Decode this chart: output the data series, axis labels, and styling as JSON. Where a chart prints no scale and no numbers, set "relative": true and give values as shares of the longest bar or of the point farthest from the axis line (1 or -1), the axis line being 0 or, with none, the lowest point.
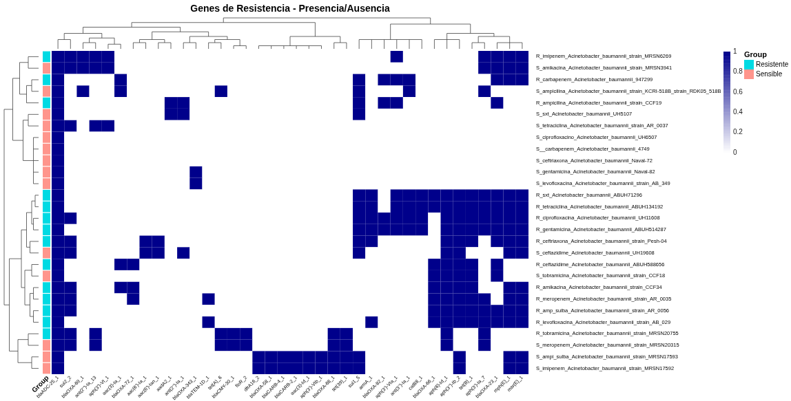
{
  "chart_data": [
    {
      "type": "bar",
      "orientation": "horizontal",
      "stacked": true,
      "relative": true,
      "xlabel": "Group",
      "legend_title": "Group",
      "legend": "right",
      "categories": [
        null,
        null,
        null,
        null,
        null,
        null,
        null,
        null,
        null,
        null,
        null,
        null,
        null,
        null,
        null,
        null,
        null,
        null,
        null,
        null,
        null,
        null,
        null,
        null,
        null,
        null,
        null,
        null
      ],
      "series": [
        {
          "name": "Resistente",
          "color": "#00dae3",
          "values": [
            1,
            null,
            1,
            null,
            1,
            null,
            null,
            null,
            null,
            null,
            null,
            null,
            1,
            1,
            1,
            1,
            1,
            null,
            1,
            null,
            1,
            1,
            1,
            1,
            1,
            null,
            null,
            null
          ]
        },
        {
          "name": "Sensible",
          "color": "#ff958c",
          "values": [
            null,
            1,
            null,
            1,
            null,
            1,
            1,
            1,
            1,
            1,
            1,
            1,
            null,
            null,
            null,
            null,
            null,
            1,
            null,
            1,
            null,
            null,
            null,
            null,
            null,
            1,
            1,
            1
          ]
        }
      ]
    },
    {
      "type": "heatmap",
      "title": "Genes de Resistencia - Presencia/Ausencia",
      "categories": [
        "blaADC-25_1",
        "sul2_2",
        "blaOXA-69_1",
        "ant(2'')-Ia_13",
        "aph(3')-VI_1",
        "aac(3)-Ia_1",
        "blaOXA-72_1",
        "aac(6')-Ia_1",
        "aac(6')-Ian_1",
        "aadA2_1",
        "ant(2'')-Ia_1",
        "blaOXA-343_1",
        "blaTEM-1D_1",
        "tet(A)_6",
        "blaCMY-30_1",
        "floR_2",
        "dfrA16_2",
        "blaOXA-58_1",
        "blaCARB-4_1",
        "blaCARB-2_1",
        "aac(3)-Id_1",
        "aph(3')-VIb_1",
        "blaOXA-68_1",
        "tet(39)_1",
        "sul1_5",
        "armA_1",
        "blaOXA-82_1",
        "aph(3')-VIa_1",
        "ant(3'')-Ia_1",
        "catB8_1",
        "blaOXA-66_1",
        "aph(6)-Id_1",
        "aph(3'')-Ib_2",
        "tet(B)_1",
        "aph(3')-Ia_7",
        "blaOXA-23_1",
        "mph(E)_1",
        "msr(E)_1"
      ],
      "y_categories": [
        "R_imipenem_Acinetobacter_baumannii_strain_MRSN6269",
        "S_amikacina_Acinetobacter_baumannii_strain_MRSN3941",
        "R_carbapenem_Acinetobacter_baumannii_947299",
        "S_ampicilina_Acinetobacter_baumannii_strain_KCRI-518B_strain_RDK05_518B",
        "R_ampicilina_Acinetobacter_baumannii_strain_CCF19",
        "S_sxt_Acinetobacter_baumannii_UH5107",
        "S_tetraciclina_Acinetobacter_baumannii_strain_AR_0037",
        "S_ciprofloxacino_Acinetobacter_baumannii_UH6507",
        "S__carbapenem_Acinetobacter_baumannii_4749",
        "S_ceftriaxona_Acinetobacter_baumannii_Naval-72",
        "S_gentamicina_Acinetobacter_baumannii_Naval-82",
        "S_levofloxacina_Acinetobacter_baumannii_strain_AB_349",
        "R_sxt_Acinetobacter_baumannii_ABUH71296",
        "R_tetraciclina_Acinetobacter_baumannii_ABUH134192",
        "R_ciprofloxacina_Acinetobacter_baumannii_UH11608",
        "R_gentamicina_Acinetobacter_baumannii_ABUH514287",
        "R_ceftriaxona_Acinetobacter_baumannii_strain_Pesh-04",
        "S_ceftazidime_Acinetobacter_baumannii_UH19608",
        "R_ceftazidime_Acinetobacter_baumannii_ABUH588656",
        "S_tobramicina_Acinetobacter_baumannii_strain_CCF18",
        "R_amikacina_Acinetobacter_baumannii_strain_CCF34",
        "R_meropenem_Acinetobacter_baumannii_strain_AR_0035",
        "R_amp_sulba_Acinetobacter_baumannii_strain_AR_0056",
        "R_levofloxacina_Acinetobacter_baumannii_strain_AB_029",
        "R_tobramicina_Acinetobacter_baumannii_strain_MRSN20755",
        "S_meropenem_Acinetobacter_baumannii_strain_MRSN20315",
        "S_ampi_sulba_Acinetobacter_baumannii_strain_MRSN17593",
        "S_imipenem_Acinetobacter_baumannii_strain_MRSN17592"
      ],
      "colors": [
        "#ffffff",
        "#00008b"
      ],
      "clim": [
        0,
        1
      ],
      "cticks": [
        0,
        0.2,
        0.4,
        0.6,
        0.8,
        1
      ],
      "cells": [
        [
          1,
          1,
          1,
          1,
          1,
          0,
          0,
          0,
          0,
          0,
          0,
          0,
          0,
          0,
          0,
          0,
          0,
          0,
          0,
          0,
          0,
          0,
          0,
          0,
          0,
          0,
          0,
          1,
          0,
          0,
          0,
          0,
          0,
          0,
          1,
          1,
          1,
          1
        ],
        [
          1,
          1,
          1,
          1,
          1,
          0,
          0,
          0,
          0,
          0,
          0,
          0,
          0,
          0,
          0,
          0,
          0,
          0,
          0,
          0,
          0,
          0,
          0,
          0,
          0,
          0,
          0,
          0,
          0,
          0,
          0,
          0,
          0,
          0,
          1,
          1,
          1,
          1
        ],
        [
          1,
          0,
          0,
          0,
          0,
          1,
          0,
          0,
          0,
          0,
          0,
          0,
          0,
          0,
          0,
          0,
          0,
          0,
          0,
          0,
          0,
          0,
          0,
          0,
          1,
          0,
          1,
          1,
          1,
          0,
          0,
          0,
          0,
          0,
          0,
          1,
          1,
          1
        ],
        [
          1,
          0,
          1,
          0,
          0,
          1,
          0,
          0,
          0,
          0,
          0,
          0,
          0,
          1,
          0,
          0,
          0,
          0,
          0,
          0,
          0,
          0,
          0,
          0,
          1,
          0,
          0,
          0,
          1,
          0,
          0,
          0,
          0,
          0,
          1,
          0,
          0,
          0
        ],
        [
          1,
          0,
          0,
          0,
          0,
          0,
          0,
          0,
          0,
          1,
          1,
          0,
          0,
          0,
          0,
          0,
          0,
          0,
          0,
          0,
          0,
          0,
          0,
          0,
          1,
          0,
          1,
          1,
          0,
          0,
          0,
          0,
          0,
          0,
          0,
          1,
          0,
          0
        ],
        [
          1,
          0,
          0,
          0,
          0,
          0,
          0,
          0,
          0,
          1,
          1,
          0,
          0,
          0,
          0,
          0,
          0,
          0,
          0,
          0,
          0,
          0,
          0,
          0,
          1,
          0,
          0,
          0,
          0,
          0,
          0,
          0,
          0,
          0,
          0,
          0,
          0,
          0
        ],
        [
          1,
          1,
          0,
          1,
          1,
          0,
          0,
          0,
          0,
          0,
          0,
          0,
          0,
          0,
          0,
          0,
          0,
          0,
          0,
          0,
          0,
          0,
          0,
          0,
          0,
          0,
          0,
          0,
          0,
          0,
          0,
          0,
          0,
          0,
          0,
          0,
          0,
          0
        ],
        [
          1,
          0,
          0,
          0,
          0,
          0,
          0,
          0,
          0,
          0,
          0,
          0,
          0,
          0,
          0,
          0,
          0,
          0,
          0,
          0,
          0,
          0,
          0,
          0,
          0,
          0,
          0,
          0,
          0,
          0,
          0,
          0,
          0,
          0,
          0,
          0,
          0,
          0
        ],
        [
          1,
          0,
          0,
          0,
          0,
          0,
          0,
          0,
          0,
          0,
          0,
          0,
          0,
          0,
          0,
          0,
          0,
          0,
          0,
          0,
          0,
          0,
          0,
          0,
          0,
          0,
          0,
          0,
          0,
          0,
          0,
          0,
          0,
          0,
          0,
          0,
          0,
          0
        ],
        [
          1,
          0,
          0,
          0,
          0,
          0,
          0,
          0,
          0,
          0,
          0,
          0,
          0,
          0,
          0,
          0,
          0,
          0,
          0,
          0,
          0,
          0,
          0,
          0,
          0,
          0,
          0,
          0,
          0,
          0,
          0,
          0,
          0,
          0,
          0,
          0,
          0,
          0
        ],
        [
          1,
          0,
          0,
          0,
          0,
          0,
          0,
          0,
          0,
          0,
          0,
          1,
          0,
          0,
          0,
          0,
          0,
          0,
          0,
          0,
          0,
          0,
          0,
          0,
          0,
          0,
          0,
          0,
          0,
          0,
          0,
          0,
          0,
          0,
          0,
          0,
          0,
          0
        ],
        [
          1,
          0,
          0,
          0,
          0,
          0,
          0,
          0,
          0,
          0,
          0,
          1,
          0,
          0,
          0,
          0,
          0,
          0,
          0,
          0,
          0,
          0,
          0,
          0,
          0,
          0,
          0,
          0,
          0,
          0,
          0,
          0,
          0,
          0,
          0,
          0,
          0,
          0
        ],
        [
          1,
          0,
          0,
          0,
          0,
          0,
          0,
          0,
          0,
          0,
          0,
          0,
          0,
          0,
          0,
          0,
          0,
          0,
          0,
          0,
          0,
          0,
          0,
          0,
          1,
          1,
          0,
          1,
          1,
          1,
          1,
          1,
          1,
          1,
          1,
          1,
          1,
          1
        ],
        [
          1,
          0,
          0,
          0,
          0,
          0,
          0,
          0,
          0,
          0,
          0,
          0,
          0,
          0,
          0,
          0,
          0,
          0,
          0,
          0,
          0,
          0,
          0,
          0,
          1,
          1,
          0,
          1,
          1,
          1,
          1,
          1,
          1,
          1,
          1,
          1,
          1,
          1
        ],
        [
          1,
          1,
          0,
          0,
          0,
          0,
          0,
          0,
          0,
          0,
          0,
          0,
          0,
          0,
          0,
          0,
          0,
          0,
          0,
          0,
          0,
          0,
          0,
          0,
          1,
          1,
          1,
          1,
          1,
          1,
          0,
          1,
          1,
          1,
          1,
          1,
          1,
          1
        ],
        [
          1,
          0,
          0,
          0,
          0,
          0,
          0,
          0,
          0,
          0,
          0,
          0,
          0,
          0,
          0,
          0,
          0,
          0,
          0,
          0,
          0,
          0,
          0,
          0,
          1,
          1,
          1,
          1,
          1,
          1,
          0,
          1,
          1,
          1,
          1,
          1,
          1,
          1
        ],
        [
          1,
          1,
          0,
          0,
          0,
          0,
          0,
          1,
          1,
          0,
          0,
          0,
          0,
          0,
          0,
          0,
          0,
          0,
          0,
          0,
          0,
          0,
          0,
          0,
          1,
          1,
          0,
          0,
          0,
          0,
          0,
          1,
          1,
          1,
          0,
          1,
          1,
          1
        ],
        [
          1,
          1,
          0,
          0,
          0,
          0,
          0,
          1,
          1,
          0,
          1,
          0,
          0,
          0,
          0,
          0,
          0,
          0,
          0,
          0,
          0,
          0,
          0,
          0,
          1,
          0,
          0,
          0,
          0,
          0,
          0,
          1,
          1,
          0,
          0,
          0,
          1,
          1
        ],
        [
          1,
          0,
          0,
          0,
          0,
          1,
          1,
          0,
          0,
          0,
          0,
          0,
          0,
          0,
          0,
          0,
          0,
          0,
          0,
          0,
          0,
          0,
          0,
          0,
          0,
          0,
          0,
          0,
          0,
          0,
          1,
          1,
          1,
          1,
          0,
          1,
          0,
          0
        ],
        [
          1,
          0,
          0,
          0,
          0,
          0,
          0,
          0,
          0,
          0,
          0,
          0,
          0,
          0,
          0,
          0,
          0,
          0,
          0,
          0,
          0,
          0,
          0,
          0,
          0,
          0,
          0,
          0,
          0,
          0,
          1,
          1,
          1,
          1,
          0,
          1,
          0,
          0
        ],
        [
          1,
          1,
          0,
          0,
          0,
          1,
          1,
          0,
          0,
          0,
          0,
          0,
          0,
          0,
          0,
          0,
          0,
          0,
          0,
          0,
          0,
          0,
          0,
          0,
          0,
          0,
          0,
          0,
          0,
          0,
          1,
          1,
          1,
          1,
          0,
          0,
          1,
          1
        ],
        [
          1,
          1,
          0,
          0,
          0,
          0,
          1,
          0,
          0,
          0,
          0,
          0,
          1,
          0,
          0,
          0,
          0,
          0,
          0,
          0,
          0,
          0,
          0,
          0,
          0,
          0,
          0,
          0,
          0,
          0,
          1,
          1,
          1,
          1,
          1,
          0,
          1,
          1
        ],
        [
          1,
          1,
          0,
          0,
          0,
          0,
          0,
          0,
          0,
          0,
          0,
          0,
          0,
          0,
          0,
          0,
          0,
          0,
          0,
          0,
          0,
          0,
          0,
          0,
          0,
          0,
          0,
          0,
          0,
          0,
          1,
          1,
          1,
          1,
          1,
          1,
          1,
          1
        ],
        [
          1,
          0,
          0,
          0,
          0,
          0,
          0,
          0,
          0,
          0,
          0,
          0,
          1,
          0,
          0,
          0,
          0,
          0,
          0,
          0,
          0,
          0,
          0,
          0,
          0,
          1,
          0,
          0,
          0,
          0,
          1,
          1,
          1,
          1,
          1,
          1,
          1,
          1
        ],
        [
          1,
          1,
          0,
          1,
          0,
          0,
          0,
          0,
          0,
          0,
          0,
          0,
          0,
          1,
          1,
          1,
          0,
          0,
          0,
          0,
          0,
          0,
          1,
          1,
          0,
          0,
          0,
          0,
          0,
          0,
          0,
          1,
          0,
          0,
          1,
          0,
          0,
          0
        ],
        [
          1,
          1,
          0,
          1,
          0,
          0,
          0,
          0,
          0,
          0,
          0,
          0,
          0,
          1,
          1,
          1,
          0,
          0,
          0,
          0,
          0,
          0,
          1,
          1,
          0,
          0,
          0,
          0,
          0,
          0,
          0,
          1,
          0,
          0,
          1,
          0,
          0,
          0
        ],
        [
          1,
          0,
          0,
          0,
          0,
          0,
          0,
          0,
          0,
          0,
          0,
          0,
          0,
          0,
          0,
          0,
          1,
          1,
          1,
          1,
          1,
          1,
          1,
          1,
          1,
          0,
          0,
          0,
          0,
          0,
          0,
          0,
          1,
          0,
          0,
          0,
          1,
          1
        ],
        [
          1,
          0,
          0,
          0,
          0,
          0,
          0,
          0,
          0,
          0,
          0,
          0,
          0,
          0,
          0,
          0,
          1,
          1,
          1,
          1,
          1,
          1,
          1,
          1,
          1,
          0,
          0,
          0,
          0,
          0,
          0,
          0,
          1,
          0,
          0,
          0,
          1,
          1
        ]
      ]
    }
  ]
}
